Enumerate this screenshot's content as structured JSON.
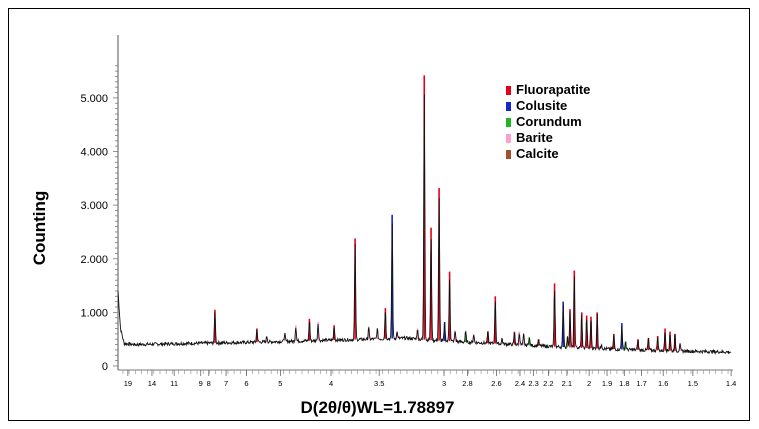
{
  "chart_data": {
    "type": "line",
    "title": "",
    "xlabel": "D(2θ/θ)WL=1.78897",
    "ylabel": "Counting",
    "y_ticks": [
      {
        "value": 0,
        "label": "0"
      },
      {
        "value": 1000,
        "label": "1.000"
      },
      {
        "value": 2000,
        "label": "2.000"
      },
      {
        "value": 3000,
        "label": "3.000"
      },
      {
        "value": 4000,
        "label": "4.000"
      },
      {
        "value": 5000,
        "label": "5.000"
      }
    ],
    "ylim": [
      0,
      5800
    ],
    "xlim": [
      8,
      92
    ],
    "x_scale": "2theta (ticks labelled in d-spacing)",
    "x_ticks": [
      {
        "twotheta": 10.8,
        "label": "19"
      },
      {
        "twotheta": 14.7,
        "label": "14"
      },
      {
        "twotheta": 18.3,
        "label": "11"
      },
      {
        "twotheta": 22.6,
        "label": "9"
      },
      {
        "twotheta": 23.9,
        "label": "8"
      },
      {
        "twotheta": 26.7,
        "label": "7"
      },
      {
        "twotheta": 30.0,
        "label": "6"
      },
      {
        "twotheta": 35.5,
        "label": "5"
      },
      {
        "twotheta": 43.7,
        "label": "4"
      },
      {
        "twotheta": 51.5,
        "label": "3.5"
      },
      {
        "twotheta": 62.0,
        "label": "3"
      },
      {
        "twotheta": 65.8,
        "label": "2.8"
      },
      {
        "twotheta": 70.5,
        "label": "2.6"
      },
      {
        "twotheta": 74.3,
        "label": "2.4"
      },
      {
        "twotheta": 76.5,
        "label": "2.3"
      },
      {
        "twotheta": 78.9,
        "label": "2.2"
      },
      {
        "twotheta": 81.9,
        "label": "2.1"
      },
      {
        "twotheta": 85.5,
        "label": "2"
      },
      {
        "twotheta": 88.4,
        "label": "1.9"
      },
      {
        "twotheta": 91.2,
        "label": "1.8"
      },
      {
        "twotheta": 94.0,
        "label": "1.7"
      },
      {
        "twotheta": 97.5,
        "label": "1.6"
      },
      {
        "twotheta": 102.3,
        "label": "1.5"
      },
      {
        "twotheta": 108.5,
        "label": "1.4"
      }
    ],
    "x_ticks_note": "twotheta values are 2θ in degrees for Co Kα (λ=1.78897 Å) computed from d labels",
    "grid": false,
    "legend_position": "top-right",
    "series": [
      {
        "name": "Fluorapatite",
        "color": "#e3001b"
      },
      {
        "name": "Colusite",
        "color": "#1428c8"
      },
      {
        "name": "Corundum",
        "color": "#22b522"
      },
      {
        "name": "Barite",
        "color": "#ff9fd0"
      },
      {
        "name": "Calcite",
        "color": "#a0522d"
      }
    ],
    "background_curve": {
      "color": "#000000",
      "points": [
        [
          9.2,
          1400
        ],
        [
          9.6,
          700
        ],
        [
          10.2,
          420
        ],
        [
          12,
          400
        ],
        [
          20,
          420
        ],
        [
          30,
          440
        ],
        [
          40,
          470
        ],
        [
          50,
          500
        ],
        [
          56,
          520
        ],
        [
          60,
          480
        ],
        [
          70,
          420
        ],
        [
          80,
          360
        ],
        [
          90,
          310
        ],
        [
          100,
          280
        ],
        [
          108.5,
          260
        ]
      ]
    },
    "peaks": [
      {
        "series": "Fluorapatite",
        "twotheta": 24.9,
        "height": 1050
      },
      {
        "series": "Fluorapatite",
        "twotheta": 31.7,
        "height": 700
      },
      {
        "series": "Barite",
        "twotheta": 33.3,
        "height": 560
      },
      {
        "series": "Barite",
        "twotheta": 36.2,
        "height": 620
      },
      {
        "series": "Barite",
        "twotheta": 38.0,
        "height": 760
      },
      {
        "series": "Fluorapatite",
        "twotheta": 40.2,
        "height": 880
      },
      {
        "series": "Barite",
        "twotheta": 41.6,
        "height": 820
      },
      {
        "series": "Fluorapatite",
        "twotheta": 44.2,
        "height": 760
      },
      {
        "series": "Fluorapatite",
        "twotheta": 47.6,
        "height": 2380
      },
      {
        "series": "Barite",
        "twotheta": 49.8,
        "height": 740
      },
      {
        "series": "Barite",
        "twotheta": 51.2,
        "height": 700
      },
      {
        "series": "Fluorapatite",
        "twotheta": 52.5,
        "height": 1080
      },
      {
        "series": "Colusite",
        "twotheta": 53.6,
        "height": 2820
      },
      {
        "series": "Barite",
        "twotheta": 54.4,
        "height": 640
      },
      {
        "series": "Barite",
        "twotheta": 57.7,
        "height": 700
      },
      {
        "series": "Fluorapatite",
        "twotheta": 58.8,
        "height": 5420
      },
      {
        "series": "Fluorapatite",
        "twotheta": 59.9,
        "height": 2580
      },
      {
        "series": "Fluorapatite",
        "twotheta": 61.2,
        "height": 3320
      },
      {
        "series": "Colusite",
        "twotheta": 62.1,
        "height": 820
      },
      {
        "series": "Fluorapatite",
        "twotheta": 62.9,
        "height": 1760
      },
      {
        "series": "Barite",
        "twotheta": 63.8,
        "height": 660
      },
      {
        "series": "Corundum",
        "twotheta": 65.5,
        "height": 640
      },
      {
        "series": "Barite",
        "twotheta": 66.8,
        "height": 600
      },
      {
        "series": "Fluorapatite",
        "twotheta": 69.1,
        "height": 640
      },
      {
        "series": "Fluorapatite",
        "twotheta": 70.3,
        "height": 1300
      },
      {
        "series": "Barite",
        "twotheta": 71.4,
        "height": 520
      },
      {
        "series": "Fluorapatite",
        "twotheta": 73.4,
        "height": 640
      },
      {
        "series": "Barite",
        "twotheta": 74.2,
        "height": 640
      },
      {
        "series": "Barite",
        "twotheta": 74.9,
        "height": 600
      },
      {
        "series": "Corundum",
        "twotheta": 75.8,
        "height": 540
      },
      {
        "series": "Fluorapatite",
        "twotheta": 77.3,
        "height": 500
      },
      {
        "series": "Fluorapatite",
        "twotheta": 79.9,
        "height": 1540
      },
      {
        "series": "Colusite",
        "twotheta": 81.3,
        "height": 1200
      },
      {
        "series": "Corundum",
        "twotheta": 82.0,
        "height": 540
      },
      {
        "series": "Fluorapatite",
        "twotheta": 82.4,
        "height": 1060
      },
      {
        "series": "Fluorapatite",
        "twotheta": 83.1,
        "height": 1780
      },
      {
        "series": "Fluorapatite",
        "twotheta": 84.3,
        "height": 1000
      },
      {
        "series": "Fluorapatite",
        "twotheta": 85.1,
        "height": 940
      },
      {
        "series": "Fluorapatite",
        "twotheta": 85.8,
        "height": 920
      },
      {
        "series": "Fluorapatite",
        "twotheta": 86.8,
        "height": 1000
      },
      {
        "series": "Barite",
        "twotheta": 87.5,
        "height": 420
      },
      {
        "series": "Fluorapatite",
        "twotheta": 89.5,
        "height": 600
      },
      {
        "series": "Colusite",
        "twotheta": 90.8,
        "height": 800
      },
      {
        "series": "Corundum",
        "twotheta": 91.4,
        "height": 460
      },
      {
        "series": "Fluorapatite",
        "twotheta": 93.4,
        "height": 500
      },
      {
        "series": "Fluorapatite",
        "twotheta": 95.1,
        "height": 520
      },
      {
        "series": "Fluorapatite",
        "twotheta": 96.6,
        "height": 560
      },
      {
        "series": "Fluorapatite",
        "twotheta": 97.8,
        "height": 700
      },
      {
        "series": "Fluorapatite",
        "twotheta": 98.6,
        "height": 640
      },
      {
        "series": "Fluorapatite",
        "twotheta": 99.4,
        "height": 600
      },
      {
        "series": "Barite",
        "twotheta": 100.2,
        "height": 420
      }
    ]
  }
}
